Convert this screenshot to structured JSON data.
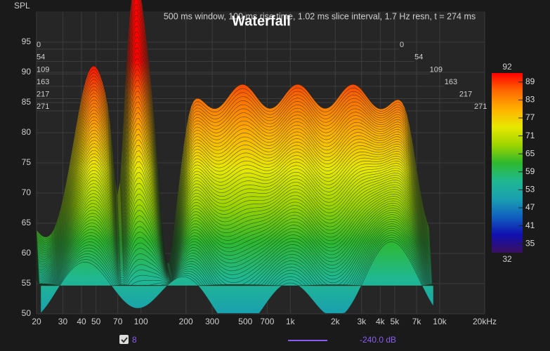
{
  "chart_data": {
    "type": "waterfall",
    "title": "Waterfall",
    "subtitle": "500 ms window, 100 ms rise time, 1.02 ms slice interval, 1.7 Hz resn, t = 274 ms",
    "y_label": "SPL",
    "xlim": [
      20,
      20000
    ],
    "x_log": true,
    "xticks": [
      20,
      30,
      40,
      50,
      70,
      100,
      200,
      300,
      500,
      700,
      {
        "value": 1000,
        "label": "1k"
      },
      {
        "value": 2000,
        "label": "2k"
      },
      {
        "value": 3000,
        "label": "3k"
      },
      {
        "value": 4000,
        "label": "4k"
      },
      {
        "value": 5000,
        "label": "5k"
      },
      {
        "value": 7000,
        "label": "7k"
      },
      {
        "value": 10000,
        "label": "10k"
      },
      {
        "value": 20000,
        "label": "20kHz"
      }
    ],
    "ylim": [
      50,
      100
    ],
    "yticks": [
      50,
      55,
      60,
      65,
      70,
      75,
      80,
      85,
      90,
      95
    ],
    "zlim": [
      0,
      271
    ],
    "zticks": [
      0,
      54,
      109,
      163,
      217,
      271
    ],
    "grid": true,
    "colorbar": {
      "lim": [
        32,
        92
      ],
      "ticks": [
        89,
        83,
        77,
        71,
        65,
        59,
        53,
        47,
        41,
        35
      ]
    },
    "colormap": [
      "#3a1060",
      "#1010b0",
      "#1060c0",
      "#1aa0b0",
      "#20b890",
      "#2eb82e",
      "#9ed400",
      "#e8e800",
      "#ffb000",
      "#ff6a00",
      "#ff0000"
    ],
    "legend": {
      "count": "8",
      "level": "-240.0 dB",
      "color": "#8a5cf0"
    }
  }
}
